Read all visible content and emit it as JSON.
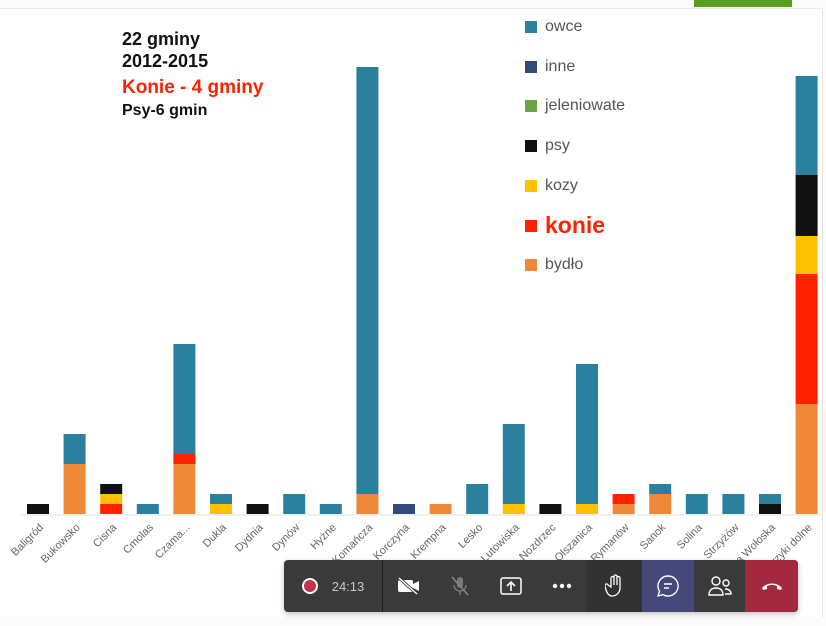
{
  "slide": {
    "title_lines": [
      "22 gminy",
      "2012-2015",
      "Konie - 4 gminy",
      "Psy-6 gmin"
    ]
  },
  "chart_data": {
    "type": "bar",
    "stacked": true,
    "title": "",
    "xlabel": "",
    "ylabel": "",
    "categories": [
      "Baligród",
      "Bukowsko",
      "Cisna",
      "Cmolas",
      "Czama...",
      "Dukla",
      "Dydnia",
      "Dynów",
      "Hyżne",
      "Komańcza",
      "Korczyna",
      "Krempna",
      "Lesko",
      "Lutowiska",
      "Nozdrzec",
      "Olszanica",
      "Rymanów",
      "Sanok",
      "Solina",
      "Strzyżów",
      "Tyrawa Wołoska",
      "Ustrzyki dolne"
    ],
    "series": [
      {
        "name": "bydło",
        "color": "#f0883a",
        "values": [
          0,
          5,
          0,
          0,
          5,
          0,
          0,
          0,
          0,
          2,
          0,
          1,
          0,
          0,
          0,
          0,
          1,
          2,
          0,
          0,
          0,
          11
        ]
      },
      {
        "name": "konie",
        "color": "#ff2200",
        "values": [
          0,
          0,
          1,
          0,
          1,
          0,
          0,
          0,
          0,
          0,
          0,
          0,
          0,
          0,
          0,
          0,
          1,
          0,
          0,
          0,
          0,
          13
        ]
      },
      {
        "name": "kozy",
        "color": "#ffc000",
        "values": [
          0,
          0,
          1,
          0,
          0,
          1,
          0,
          0,
          0,
          0,
          0,
          0,
          0,
          1,
          0,
          1,
          0,
          0,
          0,
          0,
          0,
          3.8
        ]
      },
      {
        "name": "psy",
        "color": "#111111",
        "values": [
          1,
          0,
          1,
          0,
          0,
          0,
          1,
          0,
          0,
          0,
          0,
          0,
          0,
          0,
          1,
          0,
          0,
          0,
          0,
          0,
          1,
          6.1
        ]
      },
      {
        "name": "jeleniowate",
        "color": "#6aa343",
        "values": [
          0,
          0,
          0,
          0,
          0,
          0,
          0,
          0,
          0,
          0,
          0,
          0,
          0,
          0,
          0,
          0,
          0,
          0,
          0,
          0,
          0,
          0
        ]
      },
      {
        "name": "inne",
        "color": "#2f4d78",
        "values": [
          0,
          0,
          0,
          0,
          0,
          0,
          0,
          0,
          0,
          0,
          1,
          0,
          0,
          0,
          0,
          0,
          0,
          0,
          0,
          0,
          0,
          0
        ]
      },
      {
        "name": "owce",
        "color": "#2b809e",
        "values": [
          0,
          3,
          0,
          1,
          11,
          1,
          0,
          2,
          1,
          42.7,
          0,
          0,
          3,
          8,
          0,
          14,
          0,
          1,
          2,
          2,
          1,
          9.9
        ]
      }
    ],
    "legend_order": [
      "owce",
      "inne",
      "jeleniowate",
      "psy",
      "kozy",
      "konie",
      "bydło"
    ],
    "legend_placement": "top-right",
    "grid": false
  },
  "toolbar": {
    "timer": "24:13",
    "buttons": [
      "camera-off",
      "mic-off",
      "share",
      "more",
      "raise-hand",
      "chat",
      "participants",
      "leave"
    ]
  }
}
